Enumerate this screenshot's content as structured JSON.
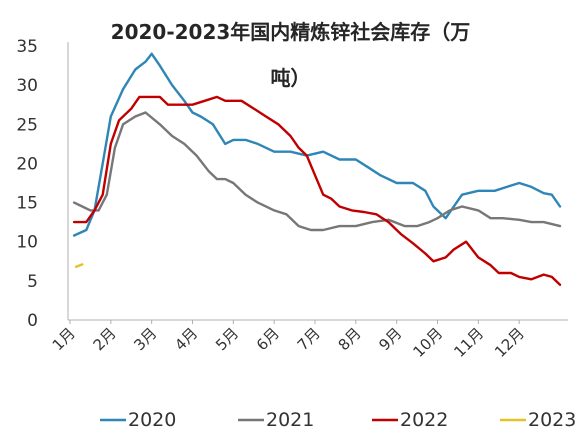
{
  "chart_data": {
    "type": "line",
    "title_line1": "2020-2023年国内精炼锌社会库存（万",
    "title_line2": "吨）",
    "xlabel": "",
    "ylabel": "",
    "ylim": [
      0,
      35
    ],
    "yticks": [
      0,
      5,
      10,
      15,
      20,
      25,
      30,
      35
    ],
    "xlim": [
      0,
      12
    ],
    "x_tick_labels": [
      "1月",
      "2月",
      "3月",
      "4月",
      "5月",
      "6月",
      "7月",
      "8月",
      "9月",
      "10月",
      "11月",
      "12月"
    ],
    "grid": false,
    "legend_placement": "bottom",
    "series": [
      {
        "name": "2020",
        "color": "#2E86B7",
        "points": [
          [
            0.1,
            10.8
          ],
          [
            0.4,
            11.5
          ],
          [
            0.6,
            14
          ],
          [
            0.8,
            20
          ],
          [
            1.0,
            26
          ],
          [
            1.3,
            29.5
          ],
          [
            1.6,
            32
          ],
          [
            1.85,
            33
          ],
          [
            2.0,
            34
          ],
          [
            2.2,
            32.5
          ],
          [
            2.5,
            30
          ],
          [
            2.8,
            28
          ],
          [
            3.0,
            26.5
          ],
          [
            3.2,
            26
          ],
          [
            3.5,
            25
          ],
          [
            3.8,
            22.5
          ],
          [
            4.0,
            23
          ],
          [
            4.3,
            23
          ],
          [
            4.6,
            22.5
          ],
          [
            5.0,
            21.5
          ],
          [
            5.4,
            21.5
          ],
          [
            5.8,
            21
          ],
          [
            6.2,
            21.5
          ],
          [
            6.6,
            20.5
          ],
          [
            7.0,
            20.5
          ],
          [
            7.3,
            19.5
          ],
          [
            7.6,
            18.5
          ],
          [
            8.0,
            17.5
          ],
          [
            8.4,
            17.5
          ],
          [
            8.7,
            16.5
          ],
          [
            8.9,
            14.5
          ],
          [
            9.2,
            13
          ],
          [
            9.6,
            16
          ],
          [
            10.0,
            16.5
          ],
          [
            10.4,
            16.5
          ],
          [
            10.7,
            17
          ],
          [
            11.0,
            17.5
          ],
          [
            11.3,
            17
          ],
          [
            11.6,
            16.2
          ],
          [
            11.8,
            16
          ],
          [
            12.0,
            14.5
          ]
        ]
      },
      {
        "name": "2021",
        "color": "#777777",
        "points": [
          [
            0.1,
            15
          ],
          [
            0.3,
            14.5
          ],
          [
            0.5,
            14
          ],
          [
            0.7,
            14
          ],
          [
            0.9,
            16
          ],
          [
            1.1,
            22
          ],
          [
            1.3,
            25
          ],
          [
            1.6,
            26
          ],
          [
            1.85,
            26.5
          ],
          [
            2.2,
            25
          ],
          [
            2.5,
            23.5
          ],
          [
            2.8,
            22.5
          ],
          [
            3.1,
            21
          ],
          [
            3.4,
            19
          ],
          [
            3.6,
            18
          ],
          [
            3.8,
            18
          ],
          [
            4.0,
            17.5
          ],
          [
            4.3,
            16
          ],
          [
            4.6,
            15
          ],
          [
            5.0,
            14
          ],
          [
            5.3,
            13.5
          ],
          [
            5.6,
            12
          ],
          [
            5.9,
            11.5
          ],
          [
            6.2,
            11.5
          ],
          [
            6.6,
            12
          ],
          [
            7.0,
            12
          ],
          [
            7.4,
            12.5
          ],
          [
            7.8,
            12.8
          ],
          [
            8.2,
            12
          ],
          [
            8.5,
            12
          ],
          [
            8.8,
            12.5
          ],
          [
            9.0,
            13
          ],
          [
            9.3,
            14
          ],
          [
            9.6,
            14.5
          ],
          [
            10.0,
            14
          ],
          [
            10.3,
            13
          ],
          [
            10.6,
            13
          ],
          [
            11.0,
            12.8
          ],
          [
            11.3,
            12.5
          ],
          [
            11.6,
            12.5
          ],
          [
            12.0,
            12
          ]
        ]
      },
      {
        "name": "2022",
        "color": "#C00000",
        "points": [
          [
            0.1,
            12.5
          ],
          [
            0.4,
            12.5
          ],
          [
            0.6,
            14
          ],
          [
            0.8,
            16
          ],
          [
            1.0,
            22.5
          ],
          [
            1.2,
            25.5
          ],
          [
            1.5,
            27
          ],
          [
            1.7,
            28.5
          ],
          [
            1.9,
            28.5
          ],
          [
            2.2,
            28.5
          ],
          [
            2.4,
            27.5
          ],
          [
            2.7,
            27.5
          ],
          [
            3.0,
            27.5
          ],
          [
            3.3,
            28
          ],
          [
            3.6,
            28.5
          ],
          [
            3.8,
            28
          ],
          [
            4.2,
            28
          ],
          [
            4.5,
            27
          ],
          [
            4.8,
            26
          ],
          [
            5.1,
            25
          ],
          [
            5.4,
            23.5
          ],
          [
            5.6,
            22
          ],
          [
            5.8,
            21
          ],
          [
            6.0,
            18.5
          ],
          [
            6.2,
            16
          ],
          [
            6.4,
            15.5
          ],
          [
            6.6,
            14.5
          ],
          [
            6.9,
            14
          ],
          [
            7.2,
            13.8
          ],
          [
            7.5,
            13.5
          ],
          [
            7.8,
            12.5
          ],
          [
            8.1,
            11
          ],
          [
            8.4,
            9.8
          ],
          [
            8.7,
            8.5
          ],
          [
            8.9,
            7.5
          ],
          [
            9.2,
            8
          ],
          [
            9.4,
            9
          ],
          [
            9.7,
            10
          ],
          [
            10.0,
            8
          ],
          [
            10.3,
            7
          ],
          [
            10.5,
            6
          ],
          [
            10.8,
            6
          ],
          [
            11.0,
            5.5
          ],
          [
            11.3,
            5.2
          ],
          [
            11.6,
            5.8
          ],
          [
            11.8,
            5.5
          ],
          [
            12.0,
            4.5
          ]
        ]
      },
      {
        "name": "2023",
        "color": "#E6C229",
        "points": [
          [
            0.15,
            6.8
          ],
          [
            0.3,
            7.1
          ]
        ]
      }
    ]
  }
}
